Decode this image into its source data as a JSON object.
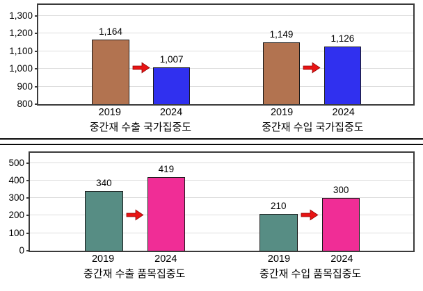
{
  "colors": {
    "brown": "#B27350",
    "blue": "#3030EF",
    "teal": "#578D84",
    "pink": "#F02D96",
    "arrow_red": "#E81414",
    "arrow_outline": "#8E0000",
    "bar_border": "#1a1a1a",
    "plot_border": "#3a3a3a",
    "gridline": "#dcdcdc",
    "text": "#000000"
  },
  "chart_data": [
    {
      "type": "bar",
      "title": "",
      "xlabel": "",
      "ylabel": "",
      "ylim": [
        800,
        1361
      ],
      "grid": true,
      "legend": false,
      "yticks": [
        {
          "value": 1300,
          "label": "1,300"
        },
        {
          "value": 1200,
          "label": "1,200"
        },
        {
          "value": 1100,
          "label": "1,100"
        },
        {
          "value": 1000,
          "label": "1,000"
        },
        {
          "value": 900,
          "label": "900"
        },
        {
          "value": 800,
          "label": "800"
        }
      ],
      "groups": [
        {
          "label": "중간재 수출 국가집중도",
          "arrow": "right",
          "bars": [
            {
              "category": "2019",
              "value": 1164,
              "display": "1,164",
              "color": "brown"
            },
            {
              "category": "2024",
              "value": 1007,
              "display": "1,007",
              "color": "blue"
            }
          ]
        },
        {
          "label": "중간재 수입 국가집중도",
          "arrow": "right",
          "bars": [
            {
              "category": "2019",
              "value": 1149,
              "display": "1,149",
              "color": "brown"
            },
            {
              "category": "2024",
              "value": 1126,
              "display": "1,126",
              "color": "blue"
            }
          ]
        }
      ]
    },
    {
      "type": "bar",
      "title": "",
      "xlabel": "",
      "ylabel": "",
      "ylim": [
        0,
        558
      ],
      "grid": true,
      "legend": false,
      "yticks": [
        {
          "value": 500,
          "label": "500"
        },
        {
          "value": 400,
          "label": "400"
        },
        {
          "value": 300,
          "label": "300"
        },
        {
          "value": 200,
          "label": "200"
        },
        {
          "value": 100,
          "label": "100"
        },
        {
          "value": 0,
          "label": "0"
        }
      ],
      "groups": [
        {
          "label": "중간재 수출 품목집중도",
          "arrow": "right",
          "bars": [
            {
              "category": "2019",
              "value": 340,
              "display": "340",
              "color": "teal"
            },
            {
              "category": "2024",
              "value": 419,
              "display": "419",
              "color": "pink"
            }
          ]
        },
        {
          "label": "중간재 수입 품목집중도",
          "arrow": "right",
          "bars": [
            {
              "category": "2019",
              "value": 210,
              "display": "210",
              "color": "teal"
            },
            {
              "category": "2024",
              "value": 300,
              "display": "300",
              "color": "pink"
            }
          ]
        }
      ]
    }
  ]
}
